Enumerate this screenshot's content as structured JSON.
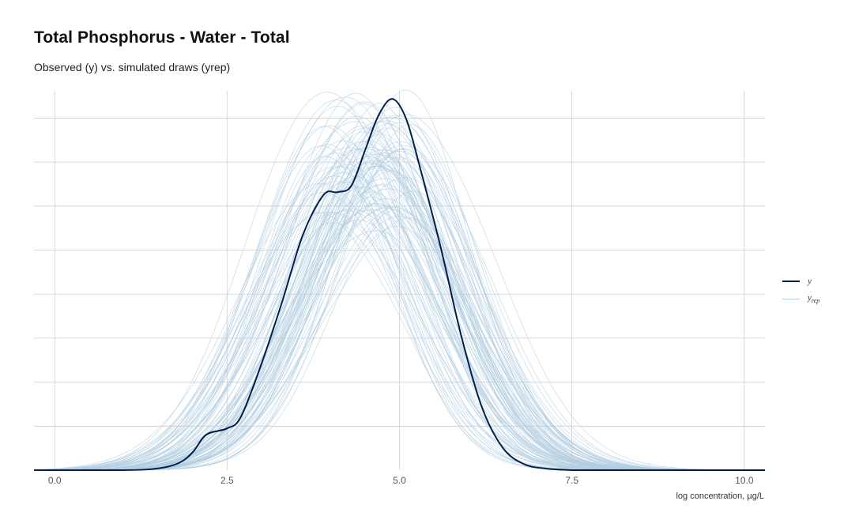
{
  "chart_data": {
    "type": "line",
    "title": "Total Phosphorus - Water - Total",
    "subtitle": "Observed (y) vs. simulated draws (yrep)",
    "xlabel": "log concentration, µg/L",
    "ylabel": "",
    "xlim": [
      -0.3,
      10.3
    ],
    "ylim": [
      0,
      0.42
    ],
    "x_ticks": [
      "0.0",
      "2.5",
      "5.0",
      "7.5",
      "10.0"
    ],
    "grid": true,
    "legend_position": "right",
    "legend": [
      {
        "key": "y",
        "label": "y",
        "color": "#011f4b"
      },
      {
        "key": "yrep",
        "label": "y",
        "sub": "rep",
        "color": "#b3cde0"
      }
    ],
    "observed_curve": {
      "name": "y",
      "color": "#011f4b",
      "x": [
        -0.3,
        1.0,
        1.5,
        1.8,
        2.0,
        2.2,
        2.5,
        2.7,
        3.0,
        3.3,
        3.6,
        3.9,
        4.1,
        4.3,
        4.5,
        4.7,
        4.9,
        5.1,
        5.3,
        5.6,
        5.9,
        6.2,
        6.5,
        6.8,
        7.1,
        7.5,
        8.0,
        10.3
      ],
      "y": [
        0,
        0,
        0.002,
        0.008,
        0.02,
        0.04,
        0.047,
        0.06,
        0.12,
        0.19,
        0.265,
        0.31,
        0.313,
        0.32,
        0.36,
        0.4,
        0.418,
        0.395,
        0.34,
        0.25,
        0.15,
        0.07,
        0.025,
        0.007,
        0.002,
        0,
        0,
        0
      ]
    },
    "simulated_draws": {
      "name": "yrep",
      "color": "#b3cde0",
      "count": 100,
      "approx_mean_range": [
        3.9,
        5.1
      ],
      "approx_sd_range": [
        0.95,
        1.25
      ],
      "approx_peak_range": [
        0.27,
        0.43
      ]
    }
  }
}
